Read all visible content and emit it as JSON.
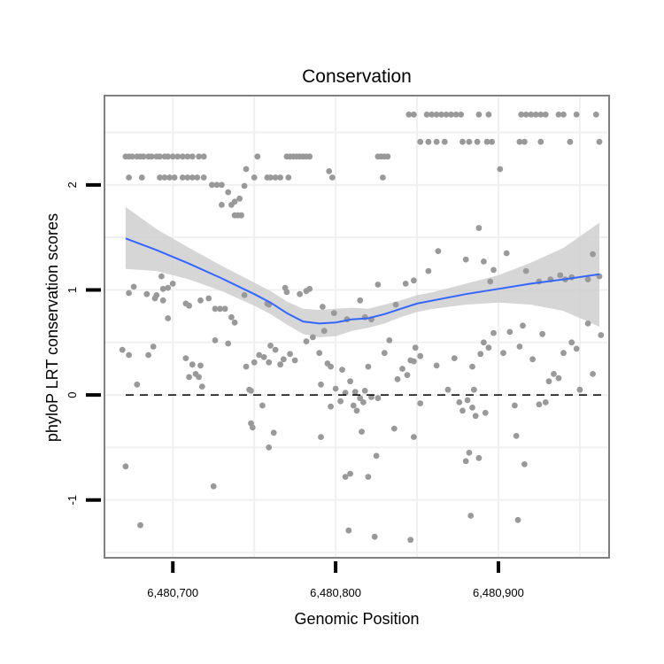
{
  "chart_data": {
    "type": "scatter",
    "title": "Conservation",
    "xlabel": "Genomic Position",
    "ylabel": "phyloP LRT conservation scores",
    "xlim": [
      6480658,
      6480968
    ],
    "ylim": [
      -1.55,
      2.85
    ],
    "x_ticks": [
      6480700,
      6480800,
      6480900
    ],
    "x_tick_labels": [
      "6,480,700",
      "6,480,800",
      "6,480,900"
    ],
    "y_ticks": [
      -1,
      0,
      1,
      2
    ],
    "y_tick_labels": [
      "-1",
      "0",
      "1",
      "2"
    ],
    "x_minor_gridlines": [
      6480650,
      6480750,
      6480850,
      6480950
    ],
    "y_minor_gridlines": [
      -1.5,
      -0.5,
      0.5,
      1.5,
      2.5
    ],
    "grid": true,
    "reference_line": {
      "y": 0,
      "style": "dashed",
      "color": "#000000"
    },
    "colors": {
      "points": "#999999",
      "smooth": "#3366ff",
      "band": "#cccccc",
      "panel_border": "#808080",
      "grid": "#f0f0f0"
    },
    "points": [
      [
        6480671,
        2.27
      ],
      [
        6480673,
        2.27
      ],
      [
        6480675,
        2.27
      ],
      [
        6480678,
        2.27
      ],
      [
        6480680,
        2.27
      ],
      [
        6480682,
        2.27
      ],
      [
        6480685,
        2.27
      ],
      [
        6480687,
        2.27
      ],
      [
        6480690,
        2.27
      ],
      [
        6480692,
        2.27
      ],
      [
        6480695,
        2.27
      ],
      [
        6480697,
        2.27
      ],
      [
        6480700,
        2.27
      ],
      [
        6480703,
        2.27
      ],
      [
        6480706,
        2.27
      ],
      [
        6480709,
        2.27
      ],
      [
        6480712,
        2.27
      ],
      [
        6480716,
        2.27
      ],
      [
        6480719,
        2.27
      ],
      [
        6480673,
        2.07
      ],
      [
        6480681,
        2.07
      ],
      [
        6480692,
        2.07
      ],
      [
        6480695,
        2.07
      ],
      [
        6480698,
        2.07
      ],
      [
        6480701,
        2.07
      ],
      [
        6480706,
        2.07
      ],
      [
        6480709,
        2.07
      ],
      [
        6480712,
        2.07
      ],
      [
        6480715,
        2.07
      ],
      [
        6480719,
        2.07
      ],
      [
        6480724,
        2.0
      ],
      [
        6480727,
        2.0
      ],
      [
        6480730,
        2.0
      ],
      [
        6480730,
        1.81
      ],
      [
        6480736,
        1.81
      ],
      [
        6480738,
        1.84
      ],
      [
        6480734,
        1.93
      ],
      [
        6480741,
        1.87
      ],
      [
        6480744,
        1.99
      ],
      [
        6480745,
        2.15
      ],
      [
        6480738,
        1.71
      ],
      [
        6480740,
        1.71
      ],
      [
        6480742,
        1.71
      ],
      [
        6480750,
        2.07
      ],
      [
        6480752,
        2.27
      ],
      [
        6480758,
        2.07
      ],
      [
        6480760,
        2.07
      ],
      [
        6480763,
        2.07
      ],
      [
        6480766,
        2.07
      ],
      [
        6480771,
        2.07
      ],
      [
        6480770,
        2.27
      ],
      [
        6480772,
        2.27
      ],
      [
        6480774,
        2.27
      ],
      [
        6480776,
        2.27
      ],
      [
        6480778,
        2.27
      ],
      [
        6480780,
        2.27
      ],
      [
        6480782,
        2.27
      ],
      [
        6480784,
        2.27
      ],
      [
        6480796,
        2.13
      ],
      [
        6480798,
        2.07
      ],
      [
        6480826,
        2.27
      ],
      [
        6480828,
        2.27
      ],
      [
        6480830,
        2.27
      ],
      [
        6480832,
        2.27
      ],
      [
        6480829,
        2.07
      ],
      [
        6480845,
        2.67
      ],
      [
        6480848,
        2.67
      ],
      [
        6480856,
        2.67
      ],
      [
        6480859,
        2.67
      ],
      [
        6480862,
        2.67
      ],
      [
        6480865,
        2.67
      ],
      [
        6480868,
        2.67
      ],
      [
        6480871,
        2.67
      ],
      [
        6480874,
        2.67
      ],
      [
        6480877,
        2.67
      ],
      [
        6480888,
        2.67
      ],
      [
        6480894,
        2.67
      ],
      [
        6480914,
        2.67
      ],
      [
        6480917,
        2.67
      ],
      [
        6480920,
        2.67
      ],
      [
        6480923,
        2.67
      ],
      [
        6480926,
        2.67
      ],
      [
        6480929,
        2.67
      ],
      [
        6480937,
        2.67
      ],
      [
        6480940,
        2.67
      ],
      [
        6480948,
        2.67
      ],
      [
        6480960,
        2.67
      ],
      [
        6480852,
        2.41
      ],
      [
        6480857,
        2.41
      ],
      [
        6480862,
        2.41
      ],
      [
        6480867,
        2.41
      ],
      [
        6480878,
        2.41
      ],
      [
        6480882,
        2.41
      ],
      [
        6480887,
        2.41
      ],
      [
        6480893,
        2.41
      ],
      [
        6480896,
        2.41
      ],
      [
        6480913,
        2.41
      ],
      [
        6480916,
        2.41
      ],
      [
        6480926,
        2.41
      ],
      [
        6480944,
        2.41
      ],
      [
        6480962,
        2.41
      ],
      [
        6480901,
        2.15
      ],
      [
        6480673,
        0.97
      ],
      [
        6480676,
        1.03
      ],
      [
        6480684,
        0.96
      ],
      [
        6480690,
        0.95
      ],
      [
        6480694,
        1.01
      ],
      [
        6480697,
        1.02
      ],
      [
        6480700,
        1.06
      ],
      [
        6480694,
        0.9
      ],
      [
        6480697,
        0.73
      ],
      [
        6480708,
        0.87
      ],
      [
        6480710,
        0.85
      ],
      [
        6480717,
        0.9
      ],
      [
        6480722,
        0.92
      ],
      [
        6480726,
        0.82
      ],
      [
        6480729,
        0.82
      ],
      [
        6480732,
        0.82
      ],
      [
        6480736,
        0.74
      ],
      [
        6480744,
        0.95
      ],
      [
        6480738,
        0.69
      ],
      [
        6480758,
        0.87
      ],
      [
        6480759,
        0.86
      ],
      [
        6480769,
        1.02
      ],
      [
        6480770,
        0.98
      ],
      [
        6480778,
        0.96
      ],
      [
        6480782,
        0.99
      ],
      [
        6480784,
        1.01
      ],
      [
        6480792,
        0.84
      ],
      [
        6480799,
        0.78
      ],
      [
        6480807,
        0.72
      ],
      [
        6480815,
        0.9
      ],
      [
        6480818,
        0.74
      ],
      [
        6480822,
        0.72
      ],
      [
        6480826,
        1.05
      ],
      [
        6480837,
        0.86
      ],
      [
        6480843,
        1.06
      ],
      [
        6480848,
        1.09
      ],
      [
        6480857,
        1.18
      ],
      [
        6480863,
        1.37
      ],
      [
        6480880,
        1.29
      ],
      [
        6480888,
        1.59
      ],
      [
        6480891,
        1.27
      ],
      [
        6480895,
        1.08
      ],
      [
        6480897,
        1.19
      ],
      [
        6480905,
        1.35
      ],
      [
        6480917,
        1.18
      ],
      [
        6480925,
        1.08
      ],
      [
        6480932,
        1.1
      ],
      [
        6480938,
        1.14
      ],
      [
        6480941,
        1.1
      ],
      [
        6480945,
        1.12
      ],
      [
        6480955,
        1.1
      ],
      [
        6480958,
        1.34
      ],
      [
        6480962,
        1.13
      ],
      [
        6480669,
        0.43
      ],
      [
        6480673,
        0.38
      ],
      [
        6480678,
        0.1
      ],
      [
        6480685,
        0.38
      ],
      [
        6480688,
        0.46
      ],
      [
        6480708,
        0.35
      ],
      [
        6480710,
        0.17
      ],
      [
        6480712,
        0.29
      ],
      [
        6480714,
        0.2
      ],
      [
        6480716,
        0.17
      ],
      [
        6480717,
        0.28
      ],
      [
        6480718,
        0.08
      ],
      [
        6480726,
        0.52
      ],
      [
        6480734,
        0.49
      ],
      [
        6480745,
        0.27
      ],
      [
        6480747,
        0.05
      ],
      [
        6480748,
        0.04
      ],
      [
        6480750,
        0.31
      ],
      [
        6480753,
        0.38
      ],
      [
        6480756,
        0.36
      ],
      [
        6480759,
        0.31
      ],
      [
        6480760,
        0.47
      ],
      [
        6480763,
        0.43
      ],
      [
        6480766,
        0.29
      ],
      [
        6480768,
        0.34
      ],
      [
        6480772,
        0.39
      ],
      [
        6480775,
        0.33
      ],
      [
        6480782,
        0.51
      ],
      [
        6480786,
        0.55
      ],
      [
        6480790,
        0.4
      ],
      [
        6480791,
        0.1
      ],
      [
        6480793,
        0.61
      ],
      [
        6480795,
        0.3
      ],
      [
        6480797,
        0.27
      ],
      [
        6480800,
        0.06
      ],
      [
        6480804,
        0.24
      ],
      [
        6480806,
        0.02
      ],
      [
        6480809,
        0.13
      ],
      [
        6480812,
        0.03
      ],
      [
        6480815,
        -0.03
      ],
      [
        6480818,
        0.04
      ],
      [
        6480820,
        0.27
      ],
      [
        6480822,
        -0.02
      ],
      [
        6480826,
        -0.03
      ],
      [
        6480830,
        0.4
      ],
      [
        6480833,
        0.52
      ],
      [
        6480838,
        0.15
      ],
      [
        6480841,
        0.25
      ],
      [
        6480844,
        0.19
      ],
      [
        6480846,
        0.33
      ],
      [
        6480848,
        0.32
      ],
      [
        6480849,
        0.45
      ],
      [
        6480852,
        0.37
      ],
      [
        6480862,
        0.28
      ],
      [
        6480869,
        0.05
      ],
      [
        6480873,
        0.35
      ],
      [
        6480876,
        -0.07
      ],
      [
        6480878,
        -0.15
      ],
      [
        6480881,
        -0.05
      ],
      [
        6480884,
        0.27
      ],
      [
        6480885,
        0.05
      ],
      [
        6480889,
        0.39
      ],
      [
        6480891,
        0.5
      ],
      [
        6480894,
        0.45
      ],
      [
        6480897,
        0.59
      ],
      [
        6480903,
        0.4
      ],
      [
        6480907,
        0.6
      ],
      [
        6480910,
        -0.1
      ],
      [
        6480913,
        0.46
      ],
      [
        6480915,
        0.66
      ],
      [
        6480921,
        0.34
      ],
      [
        6480925,
        -0.09
      ],
      [
        6480927,
        0.58
      ],
      [
        6480929,
        -0.07
      ],
      [
        6480931,
        0.13
      ],
      [
        6480934,
        0.2
      ],
      [
        6480937,
        0.16
      ],
      [
        6480940,
        0.4
      ],
      [
        6480945,
        0.5
      ],
      [
        6480948,
        0.44
      ],
      [
        6480950,
        0.05
      ],
      [
        6480955,
        0.68
      ],
      [
        6480958,
        0.2
      ],
      [
        6480963,
        0.57
      ],
      [
        6480671,
        -0.68
      ],
      [
        6480693,
        1.13
      ],
      [
        6480689,
        0.92
      ],
      [
        6480748,
        -0.27
      ],
      [
        6480749,
        -0.31
      ],
      [
        6480755,
        -0.1
      ],
      [
        6480759,
        -0.5
      ],
      [
        6480762,
        -0.36
      ],
      [
        6480791,
        -0.4
      ],
      [
        6480797,
        -0.11
      ],
      [
        6480803,
        -0.06
      ],
      [
        6480806,
        -0.78
      ],
      [
        6480809,
        -0.75
      ],
      [
        6480811,
        -0.1
      ],
      [
        6480813,
        -0.15
      ],
      [
        6480816,
        -0.35
      ],
      [
        6480817,
        -0.07
      ],
      [
        6480820,
        -0.78
      ],
      [
        6480825,
        -0.58
      ],
      [
        6480836,
        -0.32
      ],
      [
        6480848,
        -0.4
      ],
      [
        6480852,
        -0.08
      ],
      [
        6480880,
        -0.63
      ],
      [
        6480882,
        -0.55
      ],
      [
        6480884,
        -0.12
      ],
      [
        6480886,
        -0.2
      ],
      [
        6480888,
        -0.6
      ],
      [
        6480892,
        -0.17
      ],
      [
        6480911,
        -0.39
      ],
      [
        6480916,
        -0.66
      ],
      [
        6480725,
        -0.87
      ],
      [
        6480680,
        -1.24
      ],
      [
        6480808,
        -1.29
      ],
      [
        6480824,
        -1.35
      ],
      [
        6480846,
        -1.38
      ],
      [
        6480883,
        -1.15
      ],
      [
        6480912,
        -1.19
      ]
    ],
    "smooth": {
      "x": [
        6480671,
        6480690,
        6480710,
        6480730,
        6480750,
        6480760,
        6480770,
        6480780,
        6480790,
        6480800,
        6480810,
        6480820,
        6480830,
        6480840,
        6480850,
        6480860,
        6480880,
        6480900,
        6480920,
        6480940,
        6480962
      ],
      "y": [
        1.49,
        1.38,
        1.25,
        1.11,
        0.96,
        0.88,
        0.78,
        0.7,
        0.68,
        0.69,
        0.72,
        0.73,
        0.77,
        0.82,
        0.87,
        0.9,
        0.96,
        1.01,
        1.06,
        1.1,
        1.15
      ],
      "lower": [
        1.2,
        1.18,
        1.1,
        0.99,
        0.85,
        0.77,
        0.67,
        0.58,
        0.55,
        0.56,
        0.61,
        0.64,
        0.68,
        0.74,
        0.79,
        0.82,
        0.86,
        0.88,
        0.86,
        0.8,
        0.65
      ],
      "upper": [
        1.79,
        1.58,
        1.4,
        1.23,
        1.07,
        0.99,
        0.89,
        0.82,
        0.81,
        0.82,
        0.83,
        0.82,
        0.86,
        0.9,
        0.95,
        0.98,
        1.06,
        1.14,
        1.26,
        1.4,
        1.64
      ]
    }
  }
}
